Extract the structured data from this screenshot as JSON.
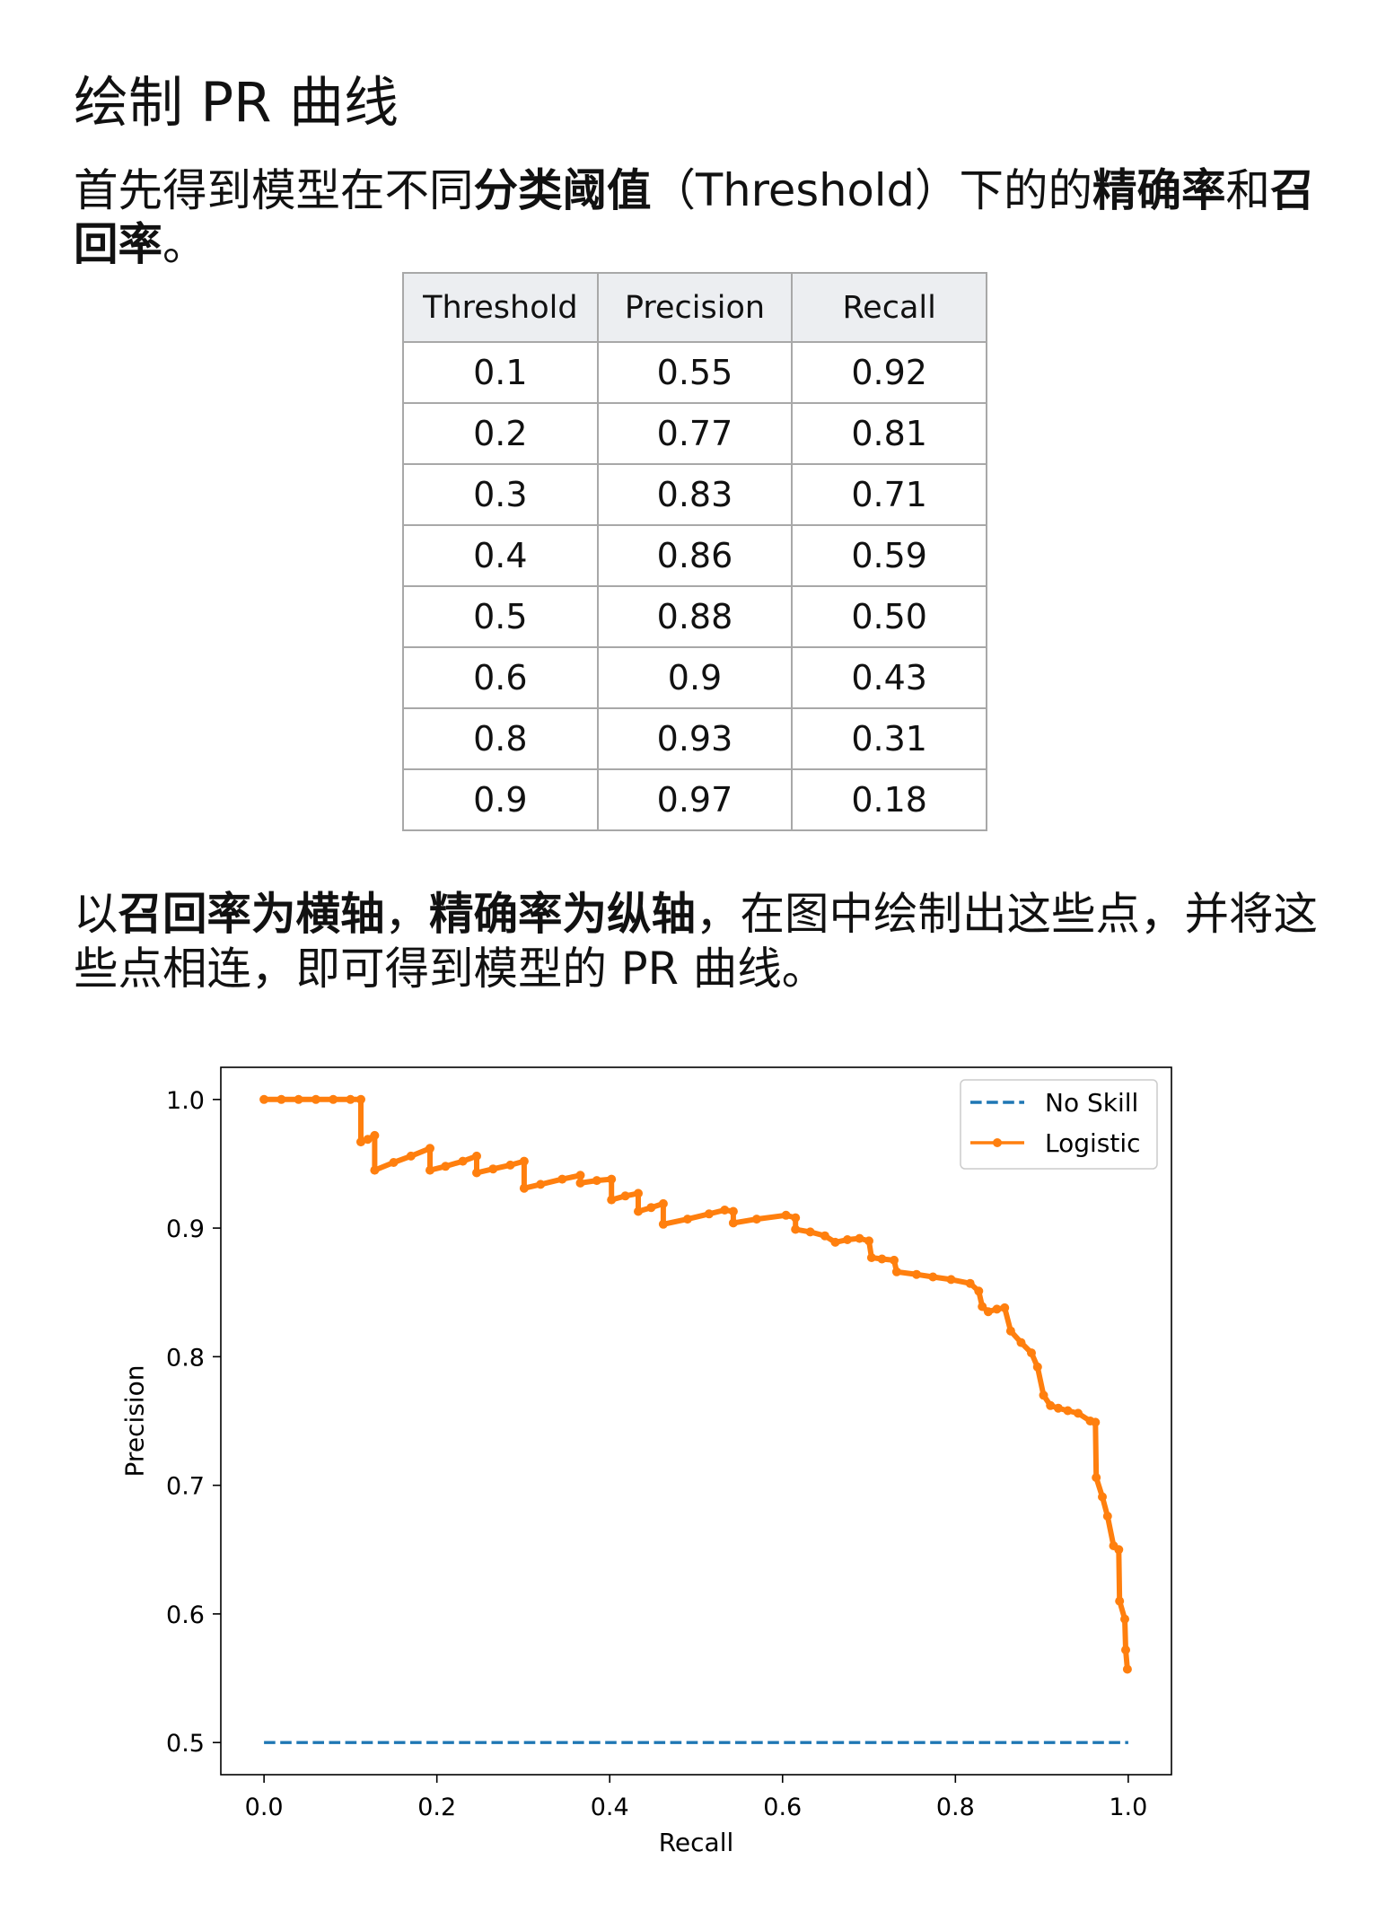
{
  "title": "绘制 PR 曲线",
  "paragraph1": [
    "首先得到模型在不同",
    "分类阈值",
    "（Threshold）下的的",
    "精确率",
    "和",
    "召回率",
    "。"
  ],
  "table": {
    "headers": [
      "Threshold",
      "Precision",
      "Recall"
    ],
    "rows": [
      [
        "0.1",
        "0.55",
        "0.92"
      ],
      [
        "0.2",
        "0.77",
        "0.81"
      ],
      [
        "0.3",
        "0.83",
        "0.71"
      ],
      [
        "0.4",
        "0.86",
        "0.59"
      ],
      [
        "0.5",
        "0.88",
        "0.50"
      ],
      [
        "0.6",
        "0.9",
        "0.43"
      ],
      [
        "0.8",
        "0.93",
        "0.31"
      ],
      [
        "0.9",
        "0.97",
        "0.18"
      ]
    ]
  },
  "paragraph2": [
    "以",
    "召回率为横轴",
    "，",
    "精确率为纵轴",
    "，在图中绘制出这些点，并将这些点相连，即可得到模型的 PR 曲线。"
  ],
  "chart_data": {
    "type": "line",
    "xlabel": "Recall",
    "ylabel": "Precision",
    "xlim": [
      -0.05,
      1.05
    ],
    "ylim": [
      0.475,
      1.025
    ],
    "x_ticks": [
      0.0,
      0.2,
      0.4,
      0.6,
      0.8,
      1.0
    ],
    "x_tick_labels": [
      "0.0",
      "0.2",
      "0.4",
      "0.6",
      "0.8",
      "1.0"
    ],
    "y_ticks": [
      0.5,
      0.6,
      0.7,
      0.8,
      0.9,
      1.0
    ],
    "y_tick_labels": [
      "0.5",
      "0.6",
      "0.7",
      "0.8",
      "0.9",
      "1.0"
    ],
    "grid": false,
    "legend_position": "top-right",
    "series": [
      {
        "name": "No Skill",
        "color": "#1f77b4",
        "dashed": true,
        "markers": false,
        "x": [
          0.0,
          1.0
        ],
        "y": [
          0.5,
          0.5
        ]
      },
      {
        "name": "Logistic",
        "color": "#ff7f0e",
        "dashed": false,
        "markers": true,
        "x": [
          0.0,
          0.02,
          0.04,
          0.06,
          0.08,
          0.1,
          0.112,
          0.112,
          0.12,
          0.128,
          0.128,
          0.15,
          0.17,
          0.192,
          0.192,
          0.21,
          0.23,
          0.246,
          0.246,
          0.265,
          0.285,
          0.301,
          0.301,
          0.32,
          0.345,
          0.366,
          0.366,
          0.385,
          0.402,
          0.402,
          0.418,
          0.433,
          0.433,
          0.448,
          0.462,
          0.462,
          0.49,
          0.515,
          0.533,
          0.543,
          0.543,
          0.57,
          0.604,
          0.615,
          0.615,
          0.632,
          0.649,
          0.661,
          0.675,
          0.689,
          0.7,
          0.703,
          0.715,
          0.729,
          0.732,
          0.755,
          0.774,
          0.795,
          0.817,
          0.827,
          0.831,
          0.838,
          0.848,
          0.857,
          0.864,
          0.876,
          0.888,
          0.895,
          0.902,
          0.91,
          0.919,
          0.93,
          0.942,
          0.956,
          0.962,
          0.963,
          0.97,
          0.976,
          0.983,
          0.989,
          0.99,
          0.996,
          0.997,
          0.999
        ],
        "y": [
          1.0,
          1.0,
          1.0,
          1.0,
          1.0,
          1.0,
          1.0,
          0.967,
          0.969,
          0.972,
          0.945,
          0.951,
          0.956,
          0.962,
          0.945,
          0.948,
          0.952,
          0.956,
          0.943,
          0.946,
          0.949,
          0.952,
          0.931,
          0.934,
          0.938,
          0.941,
          0.935,
          0.937,
          0.938,
          0.922,
          0.925,
          0.927,
          0.913,
          0.916,
          0.919,
          0.903,
          0.907,
          0.911,
          0.914,
          0.913,
          0.904,
          0.907,
          0.91,
          0.908,
          0.899,
          0.897,
          0.894,
          0.889,
          0.891,
          0.892,
          0.89,
          0.877,
          0.876,
          0.875,
          0.866,
          0.864,
          0.862,
          0.86,
          0.857,
          0.851,
          0.839,
          0.835,
          0.837,
          0.838,
          0.82,
          0.811,
          0.803,
          0.792,
          0.77,
          0.762,
          0.76,
          0.758,
          0.756,
          0.75,
          0.749,
          0.706,
          0.691,
          0.676,
          0.653,
          0.65,
          0.61,
          0.596,
          0.572,
          0.557
        ]
      }
    ]
  }
}
